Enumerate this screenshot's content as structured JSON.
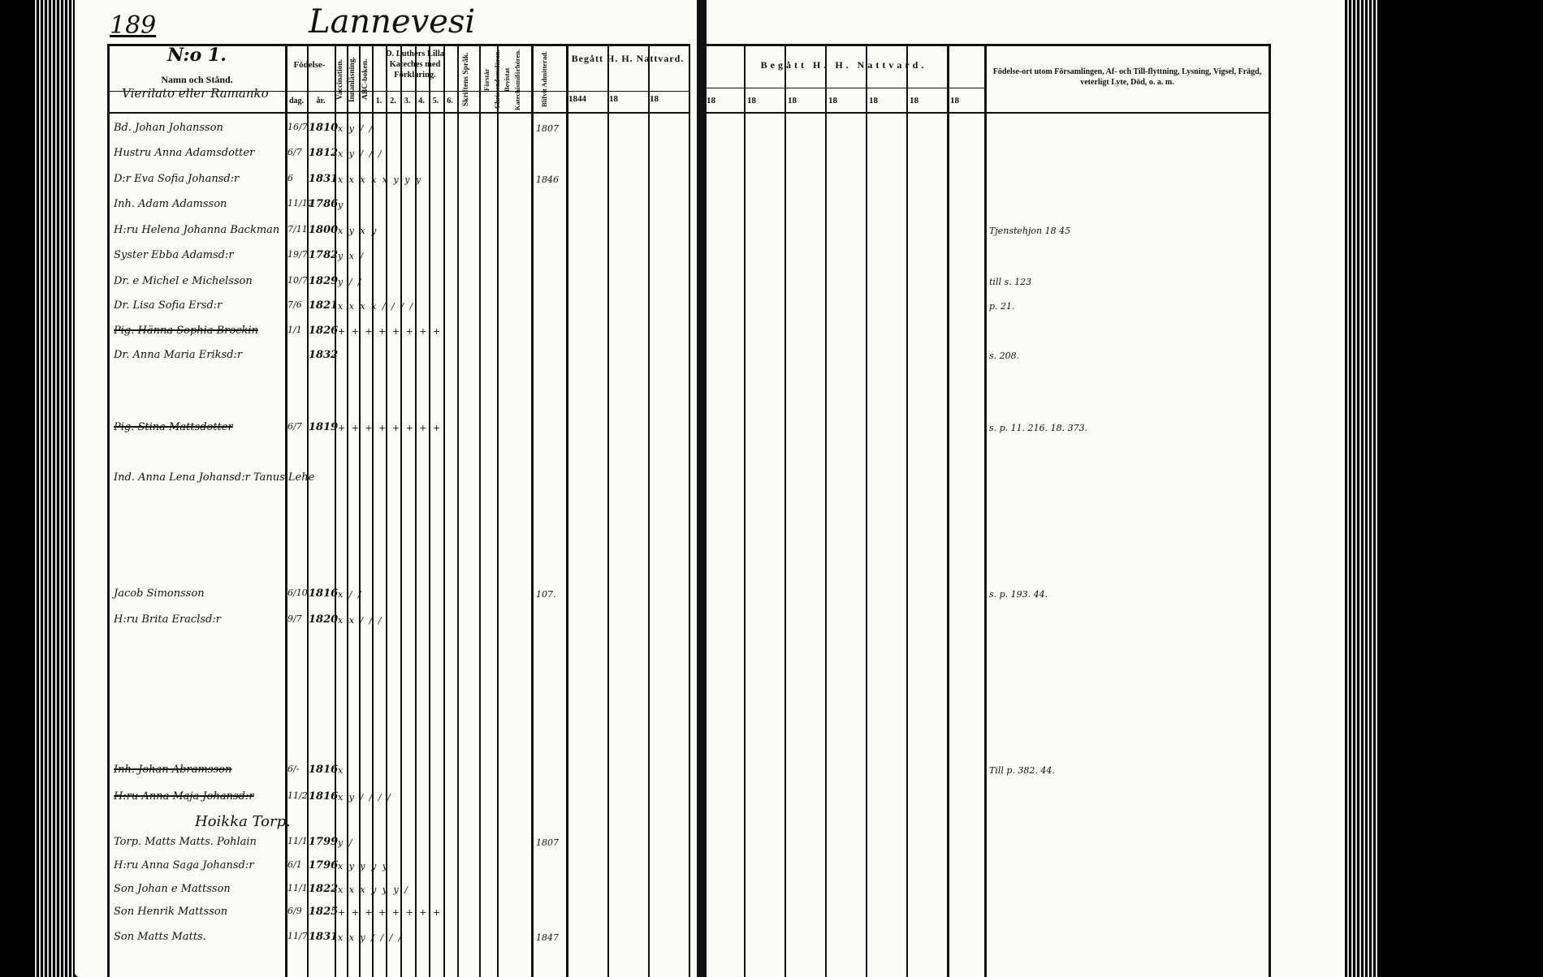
{
  "page_number": "189",
  "village": "Lannevesi",
  "left": {
    "entry_no": "N:o 1.",
    "name_header": "Namn och Stånd.",
    "farm_name": "Vierilato eller Ramanko",
    "birth_header": "Födelse-",
    "day_header": "dag.",
    "year_header": "år.",
    "vaccination": "Vaccination.",
    "innanlasning": "Innanläsning.",
    "abc": "ABC-boken.",
    "katekes": "D. Luthers Lilla Kateches med Förklaring.",
    "katekes_cols": [
      "1.",
      "2.",
      "3.",
      "4.",
      "5.",
      "6."
    ],
    "skriftens": "Skriftens Språk.",
    "forstar": "Förstår Christendomsläran.",
    "bevistat": "Bevistat Katechismiförhören.",
    "admitterad": "Blifvit Admitterad.",
    "nattvard": "Begått H. H. Nattvard.",
    "nattvard_years": [
      "1844",
      "18",
      "18"
    ]
  },
  "right": {
    "nattvard": "Begått H. H. Nattvard.",
    "nattvard_years": [
      "18",
      "18",
      "18",
      "18",
      "18",
      "18",
      "18"
    ],
    "notes_header": "Födelse-ort utom Församlingen, Af- och Till-flyttning, Lysning, Vigsel, Frägd, veterligt Lyte, Död, o. a. m."
  },
  "rows": [
    {
      "name": "Bd. Johan Johansson",
      "day": "16/7",
      "year": "1810",
      "marks": "x y / / ",
      "adm": "1807",
      "note": ""
    },
    {
      "name": "Hustru Anna Adamsdotter",
      "day": "6/7",
      "year": "1812",
      "marks": "x y / / /",
      "adm": "",
      "note": ""
    },
    {
      "name": "D:r Eva Sofia Johansd:r",
      "day": "6",
      "year": "1831",
      "marks": "x x x x x y y y",
      "adm": "1846",
      "note": ""
    },
    {
      "name": "Inh. Adam Adamsson",
      "day": "11/12",
      "year": "1786",
      "marks": "y",
      "adm": "",
      "note": ""
    },
    {
      "name": "H:ru Helena Johanna Backman",
      "day": "7/11",
      "year": "1800",
      "marks": "x y x y",
      "adm": "",
      "note": "Tjenstehjon 18 45"
    },
    {
      "name": "Syster Ebba Adamsd:r",
      "day": "19/7",
      "year": "1782",
      "marks": "y x /",
      "adm": "",
      "note": ""
    },
    {
      "name": "Dr. e Michel e Michelsson",
      "day": "10/7",
      "year": "1829",
      "marks": "y / /",
      "adm": "",
      "note": "till s. 123"
    },
    {
      "name": "Dr. Lisa Sofia Ersd:r",
      "day": "7/6",
      "year": "1821",
      "marks": "x x x x / / / /",
      "adm": "",
      "note": "p. 21."
    },
    {
      "name": "Pig. Hänna Sophia Brockin",
      "day": "1/1",
      "year": "1826",
      "marks": "+ + + + + + + +",
      "adm": "",
      "note": "",
      "struck": true
    },
    {
      "name": "Dr. Anna Maria Eriksd:r",
      "day": "",
      "year": "1832",
      "marks": "",
      "adm": "",
      "note": "s. 208."
    },
    {
      "name": "Pig. Stina Mattsdotter",
      "day": "6/7",
      "year": "1819",
      "marks": "+ + + + + + + +",
      "adm": "",
      "note": "s. p. 11. 216. 18. 373.",
      "struck": true
    },
    {
      "name": "Ind. Anna Lena Johansd:r Tanus Lehe",
      "day": "",
      "year": "",
      "marks": "",
      "adm": "",
      "note": ""
    },
    {
      "name": "Jacob Simonsson",
      "day": "6/10",
      "year": "1816",
      "marks": "x / /",
      "adm": "107.",
      "note": "s. p. 193. 44."
    },
    {
      "name": "H:ru Brita Eraclsd:r",
      "day": "9/7",
      "year": "1820",
      "marks": "x x / / /",
      "adm": "",
      "note": ""
    },
    {
      "name": "Inh. Johan Abramsson",
      "day": "6/-",
      "year": "1816",
      "marks": "x",
      "adm": "",
      "note": "Till p. 382. 44.",
      "struck": true
    },
    {
      "name": "H:ru Anna Maja Johansd:r",
      "day": "11/2",
      "year": "1816",
      "marks": "x y / / / /",
      "adm": "",
      "note": "",
      "struck": true
    },
    {
      "name": "Hoikka Torp.",
      "day": "",
      "year": "",
      "marks": "",
      "adm": "",
      "note": "",
      "heading": true
    },
    {
      "name": "Torp. Matts Matts. Pohlain",
      "day": "11/1",
      "year": "1799",
      "marks": "y /",
      "adm": "1807",
      "note": ""
    },
    {
      "name": "H:ru Anna Saga Johansd:r",
      "day": "6/1",
      "year": "1796",
      "marks": "x y y y y",
      "adm": "",
      "note": ""
    },
    {
      "name": "Son Johan e Mattsson",
      "day": "11/1",
      "year": "1822",
      "marks": "x x x y y y /",
      "adm": "",
      "note": ""
    },
    {
      "name": "Son Henrik Mattsson",
      "day": "6/9",
      "year": "1825",
      "marks": "+ + + + + + + +",
      "adm": "",
      "note": ""
    },
    {
      "name": "Son Matts Matts.",
      "day": "11/7",
      "year": "1831",
      "marks": "x x y / / / /",
      "adm": "1847",
      "note": ""
    }
  ]
}
